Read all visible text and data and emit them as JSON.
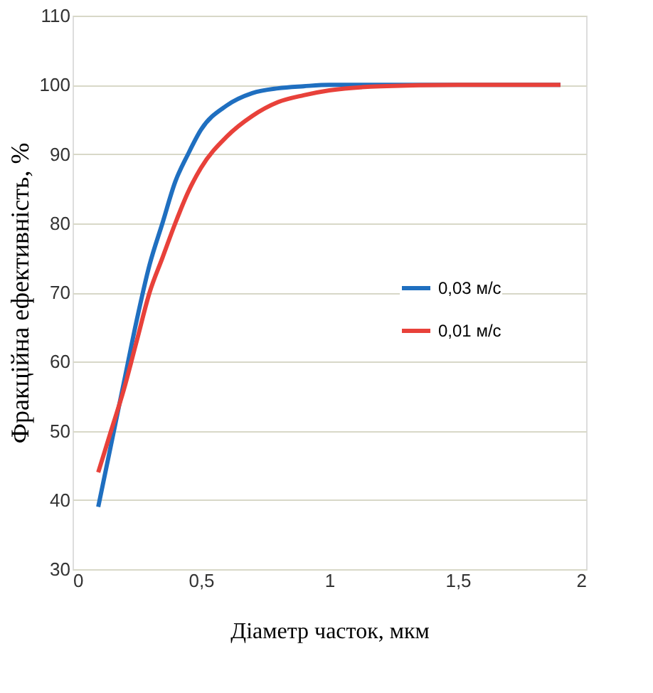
{
  "chart_data": {
    "type": "line",
    "xlabel": "Діаметр часток, мкм",
    "ylabel": "Фракційна ефективність, %",
    "xlim": [
      0,
      2
    ],
    "xticks": [
      0,
      {
        "value": 0.5,
        "label": "0,5"
      },
      1,
      {
        "value": 1.5,
        "label": "1,5"
      },
      2
    ],
    "ylim": [
      30,
      110
    ],
    "yticks": [
      30,
      40,
      50,
      60,
      70,
      80,
      90,
      100,
      110
    ],
    "grid": "y",
    "legend": "right",
    "marker": "none",
    "line_style": "solid",
    "x": [
      0.1,
      0.15,
      0.2,
      0.25,
      0.3,
      0.35,
      0.4,
      0.45,
      0.5,
      0.6,
      0.7,
      0.8,
      0.9,
      1,
      1.2,
      1.5,
      1.9
    ],
    "series": [
      {
        "name": "0,03 м/с",
        "color": "#1f6fc0",
        "values": [
          39,
          48,
          57,
          66,
          74,
          80,
          86,
          90,
          93.5,
          97,
          98.8,
          99.5,
          99.8,
          100,
          100,
          100,
          100
        ]
      },
      {
        "name": "0,01 м/с",
        "color": "#e8413a",
        "values": [
          44,
          50,
          56,
          63,
          70,
          75,
          80,
          84.5,
          88,
          92.5,
          95.5,
          97.5,
          98.5,
          99.2,
          99.8,
          100,
          100
        ]
      }
    ]
  }
}
